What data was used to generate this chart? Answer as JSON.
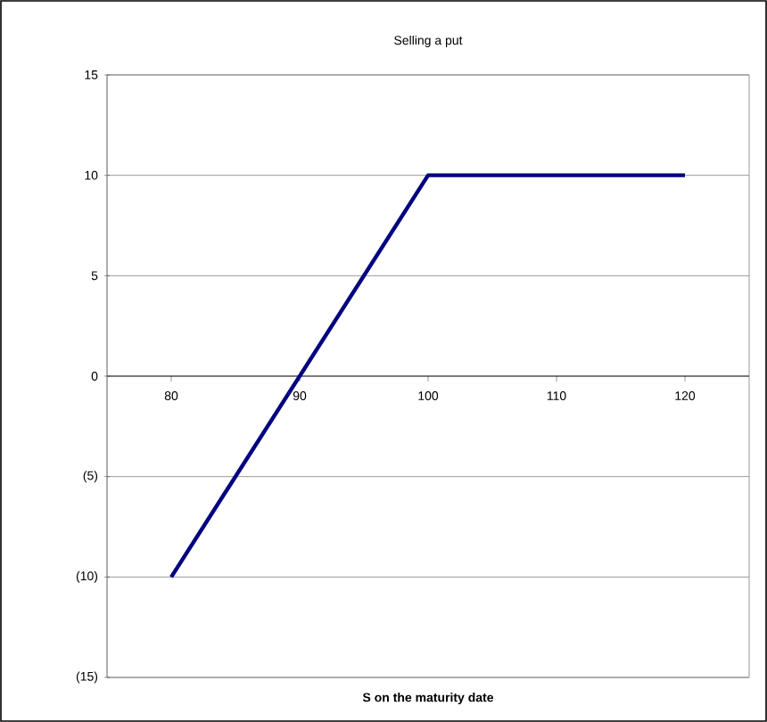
{
  "chart_data": {
    "type": "line",
    "title": "Selling a put",
    "xlabel": "S on the maturity date",
    "x": [
      80,
      100,
      120
    ],
    "series": [
      {
        "color": "#000080",
        "values": [
          -10,
          10,
          10
        ]
      }
    ],
    "xlim": [
      75,
      125
    ],
    "ylim": [
      -15,
      15
    ],
    "xticks": [
      80,
      90,
      100,
      110,
      120
    ],
    "yticks": [
      {
        "value": -15,
        "label": "(15)"
      },
      {
        "value": -10,
        "label": "(10)"
      },
      {
        "value": -5,
        "label": "(5)"
      },
      0,
      5,
      10,
      15
    ],
    "grid": "y",
    "marker": "none",
    "line_style": "solid"
  }
}
